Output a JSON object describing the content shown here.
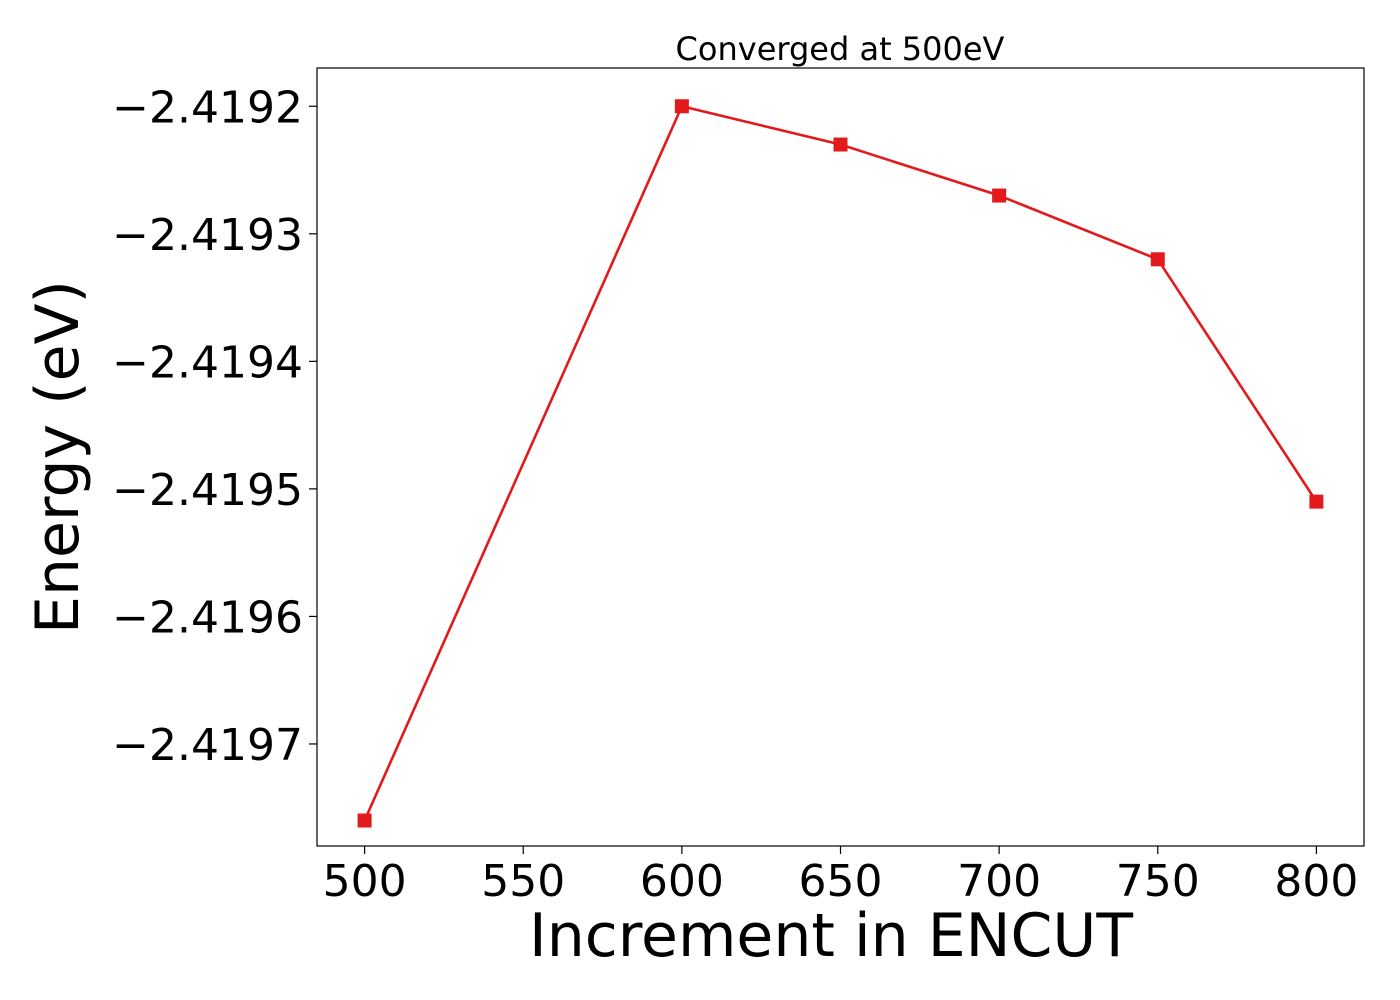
{
  "chart_data": {
    "type": "line",
    "title": "Converged at 500eV",
    "xlabel": "Increment in ENCUT",
    "ylabel": "Energy (eV)",
    "x": [
      500,
      600,
      650,
      700,
      750,
      800
    ],
    "series": [
      {
        "values": [
          -2.41976,
          -2.4192,
          -2.41923,
          -2.41927,
          -2.41932,
          -2.41951
        ],
        "color": "#e31a1c",
        "marker": "square"
      }
    ],
    "xticks": [
      500,
      550,
      600,
      650,
      700,
      750,
      800
    ],
    "xtick_labels": [
      "500",
      "550",
      "600",
      "650",
      "700",
      "750",
      "800"
    ],
    "yticks": [
      -2.4197,
      -2.4196,
      -2.4195,
      -2.4194,
      -2.4193,
      -2.4192
    ],
    "ytick_labels": [
      "−2.4197",
      "−2.4196",
      "−2.4195",
      "−2.4194",
      "−2.4193",
      "−2.4192"
    ],
    "xlim": [
      485,
      815
    ],
    "ylim": [
      -2.41978,
      -2.41917
    ],
    "grid": false
  }
}
